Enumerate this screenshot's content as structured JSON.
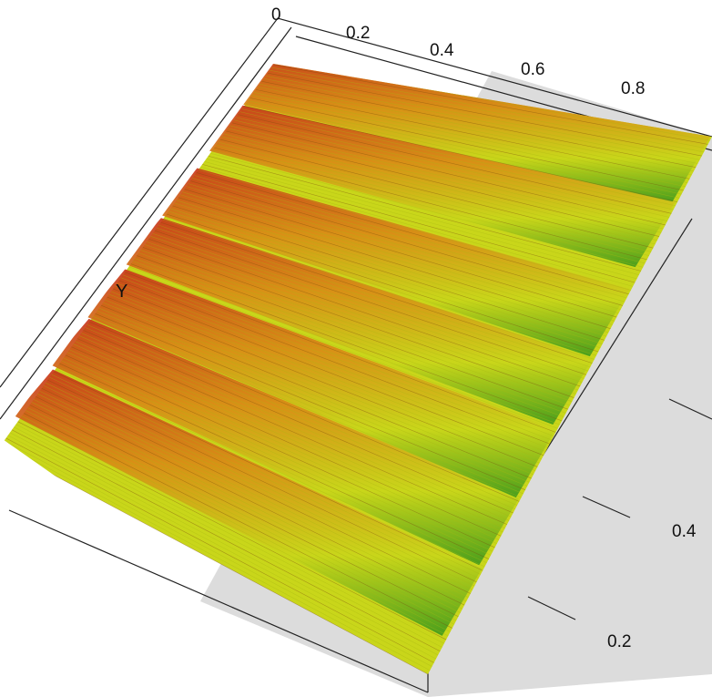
{
  "chart_data": {
    "type": "surface",
    "title": "",
    "xlabel": "",
    "ylabel": "Y",
    "zlabel": "",
    "x_ticks": [
      "0",
      "0.2",
      "0.4",
      "0.6",
      "0.8"
    ],
    "y_ticks": [
      "0.2",
      "0.4"
    ],
    "x_range": [
      0,
      1
    ],
    "y_range": [
      0,
      1
    ],
    "colormap": [
      "#3f9a1c",
      "#c9d61a",
      "#d98a16",
      "#c8361a"
    ],
    "background_color": "#dcdcdc",
    "box": true,
    "ridges": [
      {
        "y": 0.93,
        "height": 0.6
      },
      {
        "y": 0.8,
        "height": 0.9
      },
      {
        "y": 0.64,
        "height": 0.7
      },
      {
        "y": 0.51,
        "height": 0.8
      },
      {
        "y": 0.38,
        "height": 0.6
      },
      {
        "y": 0.25,
        "height": 0.75
      },
      {
        "y": 0.12,
        "height": 0.7
      }
    ]
  }
}
